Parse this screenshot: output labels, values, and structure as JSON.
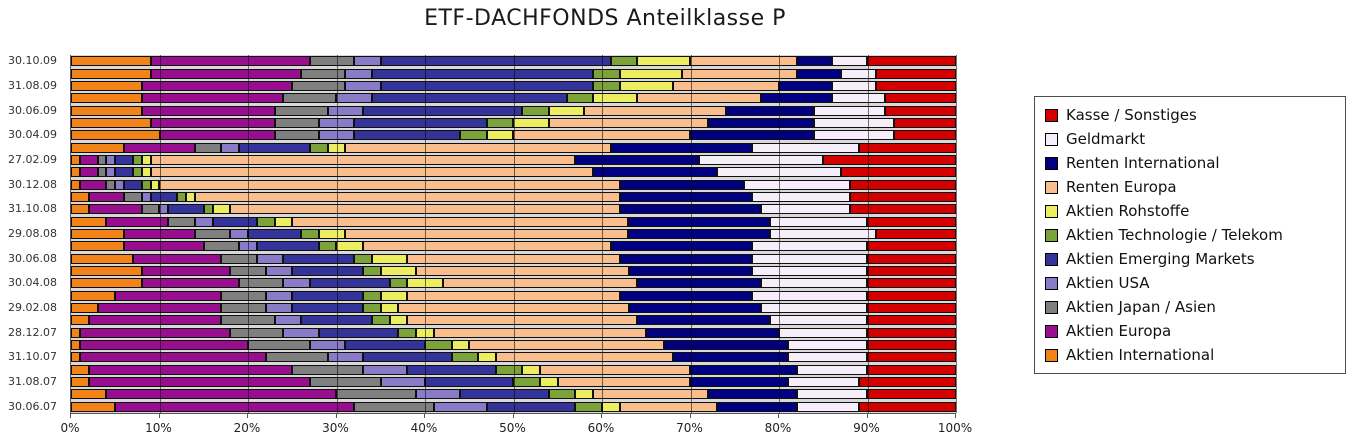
{
  "title": "ETF-DACHFONDS Anteilklasse P",
  "chart_data": {
    "type": "bar",
    "orientation": "horizontal",
    "stacked": true,
    "title": "ETF-DACHFONDS Anteilklasse P",
    "xlabel": "",
    "ylabel": "",
    "xlim": [
      0,
      100
    ],
    "x_ticks": [
      "0%",
      "10%",
      "20%",
      "30%",
      "40%",
      "50%",
      "60%",
      "70%",
      "80%",
      "90%",
      "100%"
    ],
    "grid": "vertical",
    "legend_position": "right",
    "legend": [
      {
        "label": "Kasse / Sonstiges",
        "color": "#d40000"
      },
      {
        "label": "Geldmarkt",
        "color": "#f6eefa"
      },
      {
        "label": "Renten International",
        "color": "#000080"
      },
      {
        "label": "Renten Europa",
        "color": "#f9be8b"
      },
      {
        "label": "Aktien Rohstoffe",
        "color": "#eded60"
      },
      {
        "label": "Aktien Technologie / Telekom",
        "color": "#7ca339"
      },
      {
        "label": "Aktien Emerging Markets",
        "color": "#333399"
      },
      {
        "label": "Aktien USA",
        "color": "#8a7bc8"
      },
      {
        "label": "Aktien Japan / Asien",
        "color": "#7f7f7f"
      },
      {
        "label": "Aktien Europa",
        "color": "#990d8f"
      },
      {
        "label": "Aktien International",
        "color": "#f28318"
      }
    ],
    "series_stack_order": [
      {
        "key": "aktien-international",
        "name": "Aktien International",
        "color": "#f28318"
      },
      {
        "key": "aktien-europa",
        "name": "Aktien Europa",
        "color": "#990d8f"
      },
      {
        "key": "aktien-japan-asien",
        "name": "Aktien Japan / Asien",
        "color": "#7f7f7f"
      },
      {
        "key": "aktien-usa",
        "name": "Aktien USA",
        "color": "#8a7bc8"
      },
      {
        "key": "aktien-emerging-markets",
        "name": "Aktien Emerging Markets",
        "color": "#333399"
      },
      {
        "key": "aktien-technologie-telekom",
        "name": "Aktien Technologie / Telekom",
        "color": "#7ca339"
      },
      {
        "key": "aktien-rohstoffe",
        "name": "Aktien Rohstoffe",
        "color": "#eded60"
      },
      {
        "key": "renten-europa",
        "name": "Renten Europa",
        "color": "#f9be8b"
      },
      {
        "key": "renten-international",
        "name": "Renten International",
        "color": "#000080"
      },
      {
        "key": "geldmarkt",
        "name": "Geldmarkt",
        "color": "#f6eefa"
      },
      {
        "key": "kasse-sonstiges",
        "name": "Kasse / Sonstiges",
        "color": "#d40000"
      }
    ],
    "rows": [
      {
        "label": "30.10.09",
        "values": [
          9,
          18,
          5,
          3,
          26,
          3,
          6,
          12,
          4,
          4,
          10
        ]
      },
      {
        "label": "",
        "values": [
          9,
          17,
          5,
          3,
          25,
          3,
          7,
          13,
          5,
          4,
          9
        ]
      },
      {
        "label": "31.08.09",
        "values": [
          8,
          17,
          6,
          4,
          24,
          3,
          6,
          12,
          6,
          5,
          9
        ]
      },
      {
        "label": "",
        "values": [
          8,
          16,
          6,
          4,
          22,
          3,
          5,
          14,
          8,
          6,
          8
        ]
      },
      {
        "label": "30.06.09",
        "values": [
          8,
          15,
          6,
          4,
          18,
          3,
          4,
          16,
          10,
          8,
          8
        ]
      },
      {
        "label": "",
        "values": [
          9,
          14,
          5,
          4,
          15,
          3,
          4,
          18,
          12,
          9,
          7
        ]
      },
      {
        "label": "30.04.09",
        "values": [
          10,
          13,
          5,
          4,
          12,
          3,
          3,
          20,
          14,
          9,
          7
        ]
      },
      {
        "label": "",
        "values": [
          6,
          8,
          3,
          2,
          8,
          2,
          2,
          30,
          16,
          12,
          11
        ]
      },
      {
        "label": "27.02.09",
        "values": [
          1,
          2,
          1,
          1,
          2,
          1,
          1,
          48,
          14,
          14,
          15
        ]
      },
      {
        "label": "",
        "values": [
          1,
          2,
          1,
          1,
          2,
          1,
          1,
          50,
          14,
          14,
          13
        ]
      },
      {
        "label": "30.12.08",
        "values": [
          1,
          3,
          1,
          1,
          2,
          1,
          1,
          52,
          14,
          12,
          12
        ]
      },
      {
        "label": "",
        "values": [
          2,
          4,
          2,
          1,
          3,
          1,
          1,
          48,
          15,
          11,
          12
        ]
      },
      {
        "label": "31.10.08",
        "values": [
          2,
          6,
          2,
          1,
          4,
          1,
          2,
          44,
          16,
          10,
          12
        ]
      },
      {
        "label": "",
        "values": [
          4,
          7,
          3,
          2,
          5,
          2,
          2,
          38,
          16,
          11,
          10
        ]
      },
      {
        "label": "29.08.08",
        "values": [
          6,
          8,
          4,
          2,
          6,
          2,
          3,
          32,
          16,
          12,
          9
        ]
      },
      {
        "label": "",
        "values": [
          6,
          9,
          4,
          2,
          7,
          2,
          3,
          28,
          16,
          13,
          10
        ]
      },
      {
        "label": "30.06.08",
        "values": [
          7,
          10,
          4,
          3,
          8,
          2,
          4,
          24,
          15,
          13,
          10
        ]
      },
      {
        "label": "",
        "values": [
          8,
          10,
          4,
          3,
          8,
          2,
          4,
          24,
          14,
          13,
          10
        ]
      },
      {
        "label": "30.04.08",
        "values": [
          8,
          11,
          5,
          3,
          9,
          2,
          4,
          22,
          14,
          12,
          10
        ]
      },
      {
        "label": "",
        "values": [
          5,
          12,
          5,
          3,
          8,
          2,
          3,
          24,
          15,
          13,
          10
        ]
      },
      {
        "label": "29.02.08",
        "values": [
          3,
          14,
          5,
          3,
          8,
          2,
          2,
          26,
          15,
          12,
          10
        ]
      },
      {
        "label": "",
        "values": [
          2,
          15,
          6,
          3,
          8,
          2,
          2,
          26,
          15,
          11,
          10
        ]
      },
      {
        "label": "28.12.07",
        "values": [
          1,
          17,
          6,
          4,
          9,
          2,
          2,
          24,
          15,
          10,
          10
        ]
      },
      {
        "label": "",
        "values": [
          1,
          19,
          7,
          4,
          9,
          3,
          2,
          22,
          14,
          9,
          10
        ]
      },
      {
        "label": "31.10.07",
        "values": [
          1,
          21,
          7,
          4,
          10,
          3,
          2,
          20,
          13,
          9,
          10
        ]
      },
      {
        "label": "",
        "values": [
          2,
          23,
          8,
          5,
          10,
          3,
          2,
          17,
          12,
          8,
          10
        ]
      },
      {
        "label": "31.08.07",
        "values": [
          2,
          25,
          8,
          5,
          10,
          3,
          2,
          15,
          11,
          8,
          11
        ]
      },
      {
        "label": "",
        "values": [
          4,
          26,
          9,
          5,
          10,
          3,
          2,
          13,
          10,
          8,
          10
        ]
      },
      {
        "label": "30.06.07",
        "values": [
          5,
          27,
          9,
          6,
          10,
          3,
          2,
          11,
          9,
          7,
          11
        ]
      }
    ]
  }
}
